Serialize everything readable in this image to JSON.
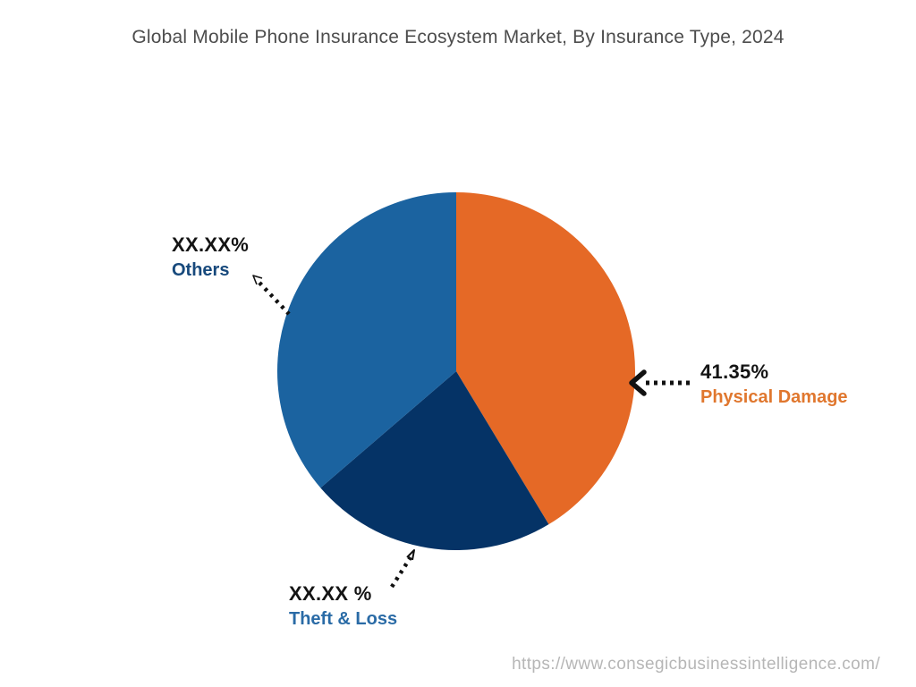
{
  "title": "Global Mobile Phone Insurance Ecosystem Market, By Insurance Type, 2024",
  "source_url": "https://www.consegicbusinessintelligence.com/",
  "colors": {
    "background": "#ffffff",
    "title_gray": "#4d4d4d",
    "value_black": "#141414",
    "url_gray": "#b6b6b6",
    "leader_black": "#111111",
    "physical_damage_orange": "#e56926",
    "theft_loss_navy": "#053366",
    "others_blue": "#1b63a0",
    "physical_label_orange": "#e0772e",
    "others_label_blue": "#17497c",
    "theft_label_blue": "#2a6ba6"
  },
  "chart_data": {
    "type": "pie",
    "title": "Global Mobile Phone Insurance Ecosystem Market, By Insurance Type, 2024",
    "start_angle_deg": 0,
    "direction": "clockwise",
    "legend": "none",
    "labels_style": "outside with dotted leader arrows",
    "slices": [
      {
        "name": "Physical Damage",
        "value_display": "41.35%",
        "percent_est": 41.35,
        "color": "#e56926"
      },
      {
        "name": "Theft & Loss",
        "value_display": "XX.XX %",
        "percent_est": 22.35,
        "color": "#053366"
      },
      {
        "name": "Others",
        "value_display": "XX.XX%",
        "percent_est": 36.3,
        "color": "#1b63a0"
      }
    ]
  }
}
